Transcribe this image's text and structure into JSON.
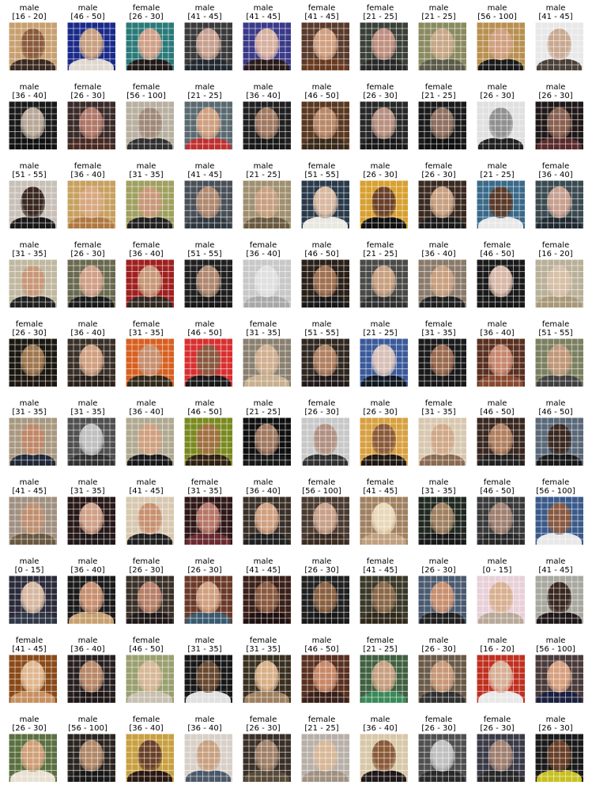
{
  "rows": [
    [
      {
        "gender": "male",
        "age": "[16 - 20]",
        "colors": {
          "bg": "#c8a070",
          "face": "#8a5a3a",
          "body": "#3a2a20"
        }
      },
      {
        "gender": "male",
        "age": "[46 - 50]",
        "colors": {
          "bg": "#1a2a8a",
          "face": "#c8a080",
          "body": "#e0d8d0"
        }
      },
      {
        "gender": "female",
        "age": "[26 - 30]",
        "colors": {
          "bg": "#2a7a7a",
          "face": "#d0a088",
          "body": "#201818"
        }
      },
      {
        "gender": "male",
        "age": "[41 - 45]",
        "colors": {
          "bg": "#3a3a3a",
          "face": "#c8a090",
          "body": "#202830"
        }
      },
      {
        "gender": "male",
        "age": "[41 - 45]",
        "colors": {
          "bg": "#3a3a8a",
          "face": "#d8b0a0",
          "body": "#2a1a18"
        }
      },
      {
        "gender": "female",
        "age": "[41 - 45]",
        "colors": {
          "bg": "#5a3a2a",
          "face": "#d0a080",
          "body": "#6a3a20"
        }
      },
      {
        "gender": "female",
        "age": "[21 - 25]",
        "colors": {
          "bg": "#3a4038",
          "face": "#c09080",
          "body": "#282828"
        }
      },
      {
        "gender": "male",
        "age": "[21 - 25]",
        "colors": {
          "bg": "#8a8a60",
          "face": "#c8a888",
          "body": "#5a5a48"
        }
      },
      {
        "gender": "male",
        "age": "[56 - 100]",
        "colors": {
          "bg": "#b89050",
          "face": "#d0a080",
          "body": "#1a1a1a"
        }
      },
      {
        "gender": "male",
        "age": "[41 - 45]",
        "colors": {
          "bg": "#e8e8e8",
          "face": "#c8a890",
          "body": "#4a4038"
        }
      }
    ],
    [
      {
        "gender": "male",
        "age": "[36 - 40]",
        "colors": {
          "bg": "#1a1a1a",
          "face": "#b8a898",
          "body": "#101010"
        }
      },
      {
        "gender": "female",
        "age": "[26 - 30]",
        "colors": {
          "bg": "#3a2a28",
          "face": "#b07868",
          "body": "#4a2a20"
        }
      },
      {
        "gender": "female",
        "age": "[56 - 100]",
        "colors": {
          "bg": "#b8b0a0",
          "face": "#a08878",
          "body": "#303030"
        }
      },
      {
        "gender": "male",
        "age": "[21 - 25]",
        "colors": {
          "bg": "#5a6a70",
          "face": "#d0a080",
          "body": "#c03030"
        }
      },
      {
        "gender": "male",
        "age": "[36 - 40]",
        "colors": {
          "bg": "#202020",
          "face": "#a07860",
          "body": "#181818"
        }
      },
      {
        "gender": "male",
        "age": "[46 - 50]",
        "colors": {
          "bg": "#5a3820",
          "face": "#b88868",
          "body": "#3a2818"
        }
      },
      {
        "gender": "female",
        "age": "[26 - 30]",
        "colors": {
          "bg": "#282828",
          "face": "#b89080",
          "body": "#181818"
        }
      },
      {
        "gender": "female",
        "age": "[21 - 25]",
        "colors": {
          "bg": "#1a1a1a",
          "face": "#907060",
          "body": "#101010"
        }
      },
      {
        "gender": "male",
        "age": "[26 - 30]",
        "colors": {
          "bg": "#e0e0e0",
          "face": "#909090",
          "body": "#202020"
        }
      },
      {
        "gender": "male",
        "age": "[26 - 30]",
        "colors": {
          "bg": "#201818",
          "face": "#8a6050",
          "body": "#5a2a2a"
        }
      }
    ],
    [
      {
        "gender": "male",
        "age": "[51 - 55]",
        "colors": {
          "bg": "#c8c0b8",
          "face": "#3a2820",
          "body": "#181818"
        }
      },
      {
        "gender": "female",
        "age": "[36 - 40]",
        "colors": {
          "bg": "#c8a060",
          "face": "#d8a880",
          "body": "#b07840"
        }
      },
      {
        "gender": "male",
        "age": "[31 - 35]",
        "colors": {
          "bg": "#a0a060",
          "face": "#c89878",
          "body": "#202020"
        }
      },
      {
        "gender": "male",
        "age": "[41 - 45]",
        "colors": {
          "bg": "#4a5058",
          "face": "#b08a70",
          "body": "#303840"
        }
      },
      {
        "gender": "male",
        "age": "[21 - 25]",
        "colors": {
          "bg": "#a09070",
          "face": "#c8a080",
          "body": "#6a5a40"
        }
      },
      {
        "gender": "female",
        "age": "[51 - 55]",
        "colors": {
          "bg": "#2a3a4a",
          "face": "#d8b8a0",
          "body": "#e8e8e0"
        }
      },
      {
        "gender": "male",
        "age": "[26 - 30]",
        "colors": {
          "bg": "#d8a030",
          "face": "#6a4028",
          "body": "#101010"
        }
      },
      {
        "gender": "female",
        "age": "[26 - 30]",
        "colors": {
          "bg": "#3a2a20",
          "face": "#c8a080",
          "body": "#1a1a1a"
        }
      },
      {
        "gender": "male",
        "age": "[21 - 25]",
        "colors": {
          "bg": "#3a6a8a",
          "face": "#5a3a28",
          "body": "#e8e8e8"
        }
      },
      {
        "gender": "female",
        "age": "[36 - 40]",
        "colors": {
          "bg": "#3a4a50",
          "face": "#c8a090",
          "body": "#202830"
        }
      }
    ],
    [
      {
        "gender": "male",
        "age": "[31 - 35]",
        "colors": {
          "bg": "#c0b8a0",
          "face": "#c89878",
          "body": "#202020"
        }
      },
      {
        "gender": "female",
        "age": "[26 - 30]",
        "colors": {
          "bg": "#6a6a50",
          "face": "#d0a088",
          "body": "#1a1a1a"
        }
      },
      {
        "gender": "female",
        "age": "[36 - 40]",
        "colors": {
          "bg": "#a02020",
          "face": "#c89878",
          "body": "#302820"
        }
      },
      {
        "gender": "male",
        "age": "[51 - 55]",
        "colors": {
          "bg": "#202020",
          "face": "#b08870",
          "body": "#181818"
        }
      },
      {
        "gender": "female",
        "age": "[36 - 40]",
        "colors": {
          "bg": "#c8c8c8",
          "face": "#e0e0e0",
          "body": "#a8a8a8"
        }
      },
      {
        "gender": "male",
        "age": "[46 - 50]",
        "colors": {
          "bg": "#2a2018",
          "face": "#a07050",
          "body": "#181818"
        }
      },
      {
        "gender": "female",
        "age": "[21 - 25]",
        "colors": {
          "bg": "#4a4a48",
          "face": "#c8a080",
          "body": "#303030"
        }
      },
      {
        "gender": "male",
        "age": "[36 - 40]",
        "colors": {
          "bg": "#8a7a6a",
          "face": "#c8a080",
          "body": "#202020"
        }
      },
      {
        "gender": "female",
        "age": "[46 - 50]",
        "colors": {
          "bg": "#1a1a1a",
          "face": "#d8b8a8",
          "body": "#181818"
        }
      },
      {
        "gender": "female",
        "age": "[16 - 20]",
        "colors": {
          "bg": "#b8b098",
          "face": "#d8c0a8",
          "body": "#a89878"
        }
      }
    ],
    [
      {
        "gender": "female",
        "age": "[26 - 30]",
        "colors": {
          "bg": "#1a1810",
          "face": "#a07850",
          "body": "#201810"
        }
      },
      {
        "gender": "male",
        "age": "[36 - 40]",
        "colors": {
          "bg": "#3a3028",
          "face": "#d0a080",
          "body": "#282018"
        }
      },
      {
        "gender": "female",
        "age": "[31 - 35]",
        "colors": {
          "bg": "#d86020",
          "face": "#c89070",
          "body": "#302818"
        }
      },
      {
        "gender": "male",
        "age": "[46 - 50]",
        "colors": {
          "bg": "#d83030",
          "face": "#8a5a40",
          "body": "#181818"
        }
      },
      {
        "gender": "female",
        "age": "[31 - 35]",
        "colors": {
          "bg": "#8a8070",
          "face": "#d0b090",
          "body": "#c8b090"
        }
      },
      {
        "gender": "male",
        "age": "[51 - 55]",
        "colors": {
          "bg": "#302820",
          "face": "#b08060",
          "body": "#201818"
        }
      },
      {
        "gender": "male",
        "age": "[21 - 25]",
        "colors": {
          "bg": "#3a5a9a",
          "face": "#d8c0b8",
          "body": "#101820"
        }
      },
      {
        "gender": "female",
        "age": "[31 - 35]",
        "colors": {
          "bg": "#1a1a1a",
          "face": "#9a6a50",
          "body": "#181818"
        }
      },
      {
        "gender": "male",
        "age": "[36 - 40]",
        "colors": {
          "bg": "#5a3020",
          "face": "#c88870",
          "body": "#8a4a30"
        }
      },
      {
        "gender": "female",
        "age": "[51 - 55]",
        "colors": {
          "bg": "#7a8060",
          "face": "#c09878",
          "body": "#404040"
        }
      }
    ],
    [
      {
        "gender": "male",
        "age": "[31 - 35]",
        "colors": {
          "bg": "#a89880",
          "face": "#c08868",
          "body": "#202838"
        }
      },
      {
        "gender": "male",
        "age": "[31 - 35]",
        "colors": {
          "bg": "#505050",
          "face": "#c0c0c0",
          "body": "#303030"
        }
      },
      {
        "gender": "male",
        "age": "[36 - 40]",
        "colors": {
          "bg": "#b0a890",
          "face": "#d0a080",
          "body": "#181818"
        }
      },
      {
        "gender": "male",
        "age": "[46 - 50]",
        "colors": {
          "bg": "#7a8a20",
          "face": "#a07040",
          "body": "#302010"
        }
      },
      {
        "gender": "male",
        "age": "[21 - 25]",
        "colors": {
          "bg": "#101010",
          "face": "#a07860",
          "body": "#181818"
        }
      },
      {
        "gender": "female",
        "age": "[26 - 30]",
        "colors": {
          "bg": "#c8c8c8",
          "face": "#b09080",
          "body": "#303030"
        }
      },
      {
        "gender": "male",
        "age": "[26 - 30]",
        "colors": {
          "bg": "#d8a040",
          "face": "#8a5a38",
          "body": "#201810"
        }
      },
      {
        "gender": "female",
        "age": "[31 - 35]",
        "colors": {
          "bg": "#d8c8b0",
          "face": "#d0a888",
          "body": "#8a6a50"
        }
      },
      {
        "gender": "male",
        "age": "[46 - 50]",
        "colors": {
          "bg": "#3a2820",
          "face": "#b08060",
          "body": "#202020"
        }
      },
      {
        "gender": "male",
        "age": "[46 - 50]",
        "colors": {
          "bg": "#5a6878",
          "face": "#3a2820",
          "body": "#181818"
        }
      }
    ],
    [
      {
        "gender": "male",
        "age": "[41 - 45]",
        "colors": {
          "bg": "#a09080",
          "face": "#c09070",
          "body": "#6a5840"
        }
      },
      {
        "gender": "male",
        "age": "[31 - 35]",
        "colors": {
          "bg": "#281818",
          "face": "#d0a088",
          "body": "#201818"
        }
      },
      {
        "gender": "male",
        "age": "[41 - 45]",
        "colors": {
          "bg": "#d8c8b0",
          "face": "#c89070",
          "body": "#202020"
        }
      },
      {
        "gender": "female",
        "age": "[31 - 35]",
        "colors": {
          "bg": "#301818",
          "face": "#b87868",
          "body": "#6a2a30"
        }
      },
      {
        "gender": "male",
        "age": "[36 - 40]",
        "colors": {
          "bg": "#3a3028",
          "face": "#d0a080",
          "body": "#202020"
        }
      },
      {
        "gender": "female",
        "age": "[56 - 100]",
        "colors": {
          "bg": "#4a3a30",
          "face": "#c8a088",
          "body": "#3a2a20"
        }
      },
      {
        "gender": "female",
        "age": "[41 - 45]",
        "colors": {
          "bg": "#a08060",
          "face": "#e8d8b8",
          "body": "#c0a080"
        }
      },
      {
        "gender": "male",
        "age": "[31 - 35]",
        "colors": {
          "bg": "#202820",
          "face": "#a08060",
          "body": "#181818"
        }
      },
      {
        "gender": "female",
        "age": "[46 - 50]",
        "colors": {
          "bg": "#3a3a3a",
          "face": "#a08070",
          "body": "#282828"
        }
      },
      {
        "gender": "female",
        "age": "[56 - 100]",
        "colors": {
          "bg": "#3a5a8a",
          "face": "#8a5a40",
          "body": "#e8e8e8"
        }
      }
    ],
    [
      {
        "gender": "male",
        "age": "[0 - 15]",
        "colors": {
          "bg": "#2a2a3a",
          "face": "#d8b8a0",
          "body": "#303848"
        }
      },
      {
        "gender": "male",
        "age": "[36 - 40]",
        "colors": {
          "bg": "#1a1a1a",
          "face": "#c89070",
          "body": "#c8a070"
        }
      },
      {
        "gender": "female",
        "age": "[26 - 30]",
        "colors": {
          "bg": "#3a3028",
          "face": "#b88068",
          "body": "#201818"
        }
      },
      {
        "gender": "male",
        "age": "[26 - 30]",
        "colors": {
          "bg": "#6a3a28",
          "face": "#d0a080",
          "body": "#3a5a70"
        }
      },
      {
        "gender": "male",
        "age": "[41 - 45]",
        "colors": {
          "bg": "#3a2018",
          "face": "#8a5a40",
          "body": "#201010"
        }
      },
      {
        "gender": "male",
        "age": "[26 - 30]",
        "colors": {
          "bg": "#202020",
          "face": "#8a6040",
          "body": "#181818"
        }
      },
      {
        "gender": "female",
        "age": "[41 - 45]",
        "colors": {
          "bg": "#3a3828",
          "face": "#8a6848",
          "body": "#302818"
        }
      },
      {
        "gender": "male",
        "age": "[26 - 30]",
        "colors": {
          "bg": "#4a5a70",
          "face": "#c89070",
          "body": "#202020"
        }
      },
      {
        "gender": "male",
        "age": "[0 - 15]",
        "colors": {
          "bg": "#e8d0d8",
          "face": "#d8b090",
          "body": "#b8a898"
        }
      },
      {
        "gender": "male",
        "age": "[41 - 45]",
        "colors": {
          "bg": "#a8a8a0",
          "face": "#3a2820",
          "body": "#201818"
        }
      }
    ],
    [
      {
        "gender": "female",
        "age": "[41 - 45]",
        "colors": {
          "bg": "#8a4a18",
          "face": "#e0b890",
          "body": "#c89060"
        }
      },
      {
        "gender": "male",
        "age": "[36 - 40]",
        "colors": {
          "bg": "#282020",
          "face": "#b88868",
          "body": "#201818"
        }
      },
      {
        "gender": "female",
        "age": "[46 - 50]",
        "colors": {
          "bg": "#9aa070",
          "face": "#d8b898",
          "body": "#c8c0b0"
        }
      },
      {
        "gender": "male",
        "age": "[31 - 35]",
        "colors": {
          "bg": "#181818",
          "face": "#6a4a30",
          "body": "#e0e0e0"
        }
      },
      {
        "gender": "female",
        "age": "[31 - 35]",
        "colors": {
          "bg": "#3a3020",
          "face": "#d8b088",
          "body": "#a08060"
        }
      },
      {
        "gender": "male",
        "age": "[46 - 50]",
        "colors": {
          "bg": "#5a3020",
          "face": "#c88868",
          "body": "#3a2018"
        }
      },
      {
        "gender": "female",
        "age": "[21 - 25]",
        "colors": {
          "bg": "#406040",
          "face": "#c8a080",
          "body": "#3a8a5a"
        }
      },
      {
        "gender": "male",
        "age": "[26 - 30]",
        "colors": {
          "bg": "#6a5a48",
          "face": "#c89878",
          "body": "#303030"
        }
      },
      {
        "gender": "male",
        "age": "[16 - 20]",
        "colors": {
          "bg": "#c03020",
          "face": "#d8b098",
          "body": "#e8e8e8"
        }
      },
      {
        "gender": "male",
        "age": "[56 - 100]",
        "colors": {
          "bg": "#4a3a3a",
          "face": "#d8a080",
          "body": "#1a2040"
        }
      }
    ],
    [
      {
        "gender": "male",
        "age": "[26 - 30]",
        "colors": {
          "bg": "#5a7040",
          "face": "#d0a078",
          "body": "#e8e0d0"
        }
      },
      {
        "gender": "male",
        "age": "[56 - 100]",
        "colors": {
          "bg": "#2a2520",
          "face": "#b08868",
          "body": "#181818"
        }
      },
      {
        "gender": "female",
        "age": "[36 - 40]",
        "colors": {
          "bg": "#c8a040",
          "face": "#6a4028",
          "body": "#2a1810"
        }
      },
      {
        "gender": "male",
        "age": "[36 - 40]",
        "colors": {
          "bg": "#d8d0c8",
          "face": "#c8a080",
          "body": "#4a5868"
        }
      },
      {
        "gender": "female",
        "age": "[26 - 30]",
        "colors": {
          "bg": "#3a3028",
          "face": "#a08068",
          "body": "#5a4a38"
        }
      },
      {
        "gender": "female",
        "age": "[21 - 25]",
        "colors": {
          "bg": "#b8b0a8",
          "face": "#d8b898",
          "body": "#a09080"
        }
      },
      {
        "gender": "male",
        "age": "[36 - 40]",
        "colors": {
          "bg": "#d8c8a8",
          "face": "#8a5a38",
          "body": "#201818"
        }
      },
      {
        "gender": "female",
        "age": "[26 - 30]",
        "colors": {
          "bg": "#505050",
          "face": "#c0c0c0",
          "body": "#282828"
        }
      },
      {
        "gender": "female",
        "age": "[26 - 30]",
        "colors": {
          "bg": "#3a3a48",
          "face": "#a08070",
          "body": "#282828"
        }
      },
      {
        "gender": "male",
        "age": "[26 - 30]",
        "colors": {
          "bg": "#1a1a1a",
          "face": "#6a4028",
          "body": "#c8c020"
        }
      }
    ]
  ]
}
